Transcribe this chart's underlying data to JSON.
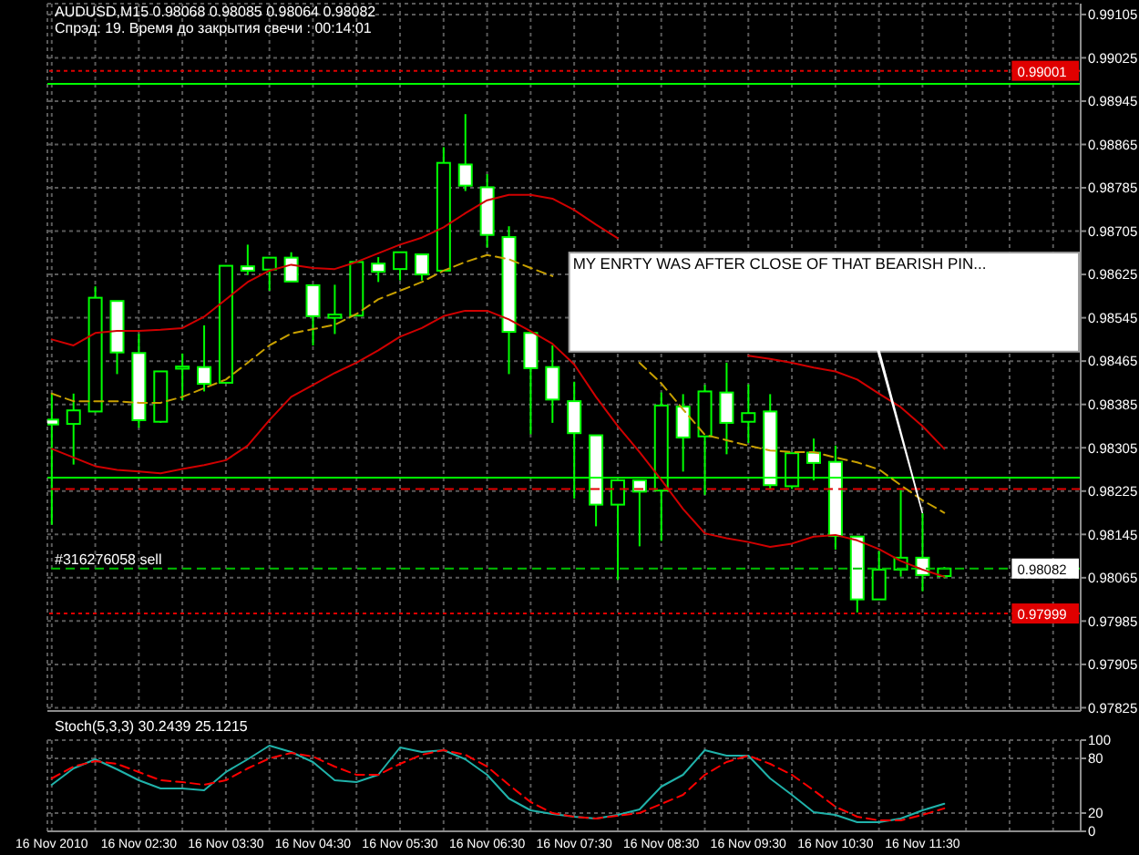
{
  "chart_data": [
    {
      "type": "candlestick",
      "title": "AUDUSD,M15 0.98068 0.98085 0.98064 0.98082",
      "subtitle": "Спрэд: 19. Время до закрытия свечи : 00:14:01",
      "x": [
        "2010-11-16T01:30",
        "2010-11-16T01:45",
        "2010-11-16T02:00",
        "2010-11-16T02:15",
        "2010-11-16T02:30",
        "2010-11-16T02:45",
        "2010-11-16T03:00",
        "2010-11-16T03:15",
        "2010-11-16T03:30",
        "2010-11-16T03:45",
        "2010-11-16T04:00",
        "2010-11-16T04:15",
        "2010-11-16T04:30",
        "2010-11-16T04:45",
        "2010-11-16T05:00",
        "2010-11-16T05:15",
        "2010-11-16T05:30",
        "2010-11-16T05:45",
        "2010-11-16T06:00",
        "2010-11-16T06:15",
        "2010-11-16T06:30",
        "2010-11-16T06:45",
        "2010-11-16T07:00",
        "2010-11-16T07:15",
        "2010-11-16T07:30",
        "2010-11-16T07:45",
        "2010-11-16T08:00",
        "2010-11-16T08:15",
        "2010-11-16T08:30",
        "2010-11-16T08:45",
        "2010-11-16T09:00",
        "2010-11-16T09:15",
        "2010-11-16T09:30",
        "2010-11-16T09:45",
        "2010-11-16T10:00",
        "2010-11-16T10:15",
        "2010-11-16T10:30",
        "2010-11-16T10:45",
        "2010-11-16T11:00",
        "2010-11-16T11:15",
        "2010-11-16T11:30",
        "2010-11-16T11:45"
      ],
      "ohlc": [
        [
          0.98357,
          0.98405,
          0.98163,
          0.98348
        ],
        [
          0.98349,
          0.98405,
          0.98274,
          0.98374
        ],
        [
          0.98372,
          0.98603,
          0.98371,
          0.98582
        ],
        [
          0.98576,
          0.98576,
          0.98441,
          0.98481
        ],
        [
          0.9848,
          0.98515,
          0.98342,
          0.98356
        ],
        [
          0.98353,
          0.98446,
          0.98351,
          0.98446
        ],
        [
          0.98451,
          0.98479,
          0.98393,
          0.98455
        ],
        [
          0.98454,
          0.98531,
          0.98409,
          0.98423
        ],
        [
          0.98425,
          0.98641,
          0.98424,
          0.98641
        ],
        [
          0.9864,
          0.9868,
          0.98624,
          0.98632
        ],
        [
          0.98634,
          0.98656,
          0.98595,
          0.98656
        ],
        [
          0.98656,
          0.98666,
          0.98612,
          0.98612
        ],
        [
          0.98605,
          0.98605,
          0.98494,
          0.98548
        ],
        [
          0.98545,
          0.98606,
          0.98515,
          0.98551
        ],
        [
          0.98549,
          0.98648,
          0.98549,
          0.98648
        ],
        [
          0.98645,
          0.98657,
          0.98611,
          0.9863
        ],
        [
          0.98635,
          0.98666,
          0.98614,
          0.98666
        ],
        [
          0.98662,
          0.98662,
          0.98614,
          0.98625
        ],
        [
          0.98632,
          0.9886,
          0.98632,
          0.98831
        ],
        [
          0.98828,
          0.98921,
          0.98779,
          0.98789
        ],
        [
          0.98786,
          0.9881,
          0.98675,
          0.98698
        ],
        [
          0.98694,
          0.98714,
          0.98441,
          0.98519
        ],
        [
          0.98517,
          0.98517,
          0.9833,
          0.98452
        ],
        [
          0.98454,
          0.98494,
          0.98351,
          0.98394
        ],
        [
          0.98391,
          0.98427,
          0.98211,
          0.98332
        ],
        [
          0.98328,
          0.98328,
          0.9816,
          0.982
        ],
        [
          0.982,
          0.98245,
          0.98061,
          0.98245
        ],
        [
          0.98245,
          0.98245,
          0.98123,
          0.98224
        ],
        [
          0.98226,
          0.98407,
          0.98133,
          0.98383
        ],
        [
          0.98381,
          0.98404,
          0.98261,
          0.98324
        ],
        [
          0.98326,
          0.98421,
          0.98218,
          0.98409
        ],
        [
          0.98407,
          0.98462,
          0.98293,
          0.98351
        ],
        [
          0.98353,
          0.98422,
          0.98314,
          0.98369
        ],
        [
          0.98372,
          0.98404,
          0.98229,
          0.98236
        ],
        [
          0.98234,
          0.98295,
          0.98229,
          0.98295
        ],
        [
          0.98296,
          0.98322,
          0.98245,
          0.98277
        ],
        [
          0.98279,
          0.98309,
          0.98117,
          0.98142
        ],
        [
          0.98141,
          0.98141,
          0.98001,
          0.98025
        ],
        [
          0.98025,
          0.98114,
          0.98025,
          0.9808
        ],
        [
          0.9808,
          0.98227,
          0.98067,
          0.98102
        ],
        [
          0.98102,
          0.98184,
          0.9804,
          0.9807
        ],
        [
          0.98068,
          0.98085,
          0.98064,
          0.98082
        ]
      ],
      "color": "#00ff00",
      "series": [
        {
          "type": "line",
          "color": "#d00000",
          "values": [
            0.98505,
            0.98494,
            0.98517,
            0.98521,
            0.98521,
            0.98523,
            0.98526,
            0.98547,
            0.98579,
            0.98611,
            0.98632,
            0.98643,
            0.98637,
            0.98635,
            0.98648,
            0.98664,
            0.9868,
            0.98693,
            0.98712,
            0.98738,
            0.98762,
            0.98772,
            0.98772,
            0.98765,
            0.98744,
            0.98717,
            0.98692,
            null,
            null,
            null,
            null,
            null,
            0.98475,
            0.98469,
            0.98462,
            0.98453,
            0.98446,
            0.98431,
            0.98405,
            0.9838,
            0.98345,
            0.98303
          ]
        },
        {
          "type": "line",
          "color": "#c8a000",
          "line_style": "dashed",
          "values": [
            0.98405,
            0.98391,
            0.98391,
            0.98391,
            0.98388,
            0.98388,
            0.98399,
            0.98415,
            0.98431,
            0.98462,
            0.98494,
            0.98516,
            0.98524,
            0.98532,
            0.98552,
            0.98579,
            0.98595,
            0.98611,
            0.98632,
            0.98648,
            0.98661,
            0.98653,
            0.98637,
            0.98622,
            null,
            null,
            null,
            0.98462,
            0.98424,
            0.98376,
            0.98329,
            0.98319,
            0.98309,
            0.983,
            0.98297,
            0.98297,
            0.98287,
            0.98278,
            0.98265,
            0.98236,
            0.98208,
            0.98185
          ]
        },
        {
          "type": "line",
          "color": "#d00000",
          "values": [
            0.98303,
            0.98287,
            0.98271,
            0.98264,
            0.98261,
            0.98258,
            0.98266,
            0.98273,
            0.98282,
            0.98309,
            0.98356,
            0.98399,
            0.98421,
            0.98443,
            0.98462,
            0.98485,
            0.9851,
            0.98526,
            0.98548,
            0.98558,
            0.98558,
            0.98542,
            0.9852,
            0.98497,
            0.98459,
            0.98399,
            0.98345,
            0.98297,
            0.98246,
            0.98192,
            0.98147,
            0.98138,
            0.98131,
            0.98122,
            0.98128,
            0.98141,
            0.98144,
            0.98134,
            0.98118,
            0.98096,
            0.9808,
            0.98067
          ]
        }
      ],
      "xlim": [
        "2010-11-16T01:27",
        "2010-11-16T13:19"
      ],
      "xticks": [
        {
          "value": "2010-11-16T01:30",
          "label": null
        },
        {
          "value": "2010-11-16T02:00",
          "label": null
        },
        {
          "value": "2010-11-16T02:30",
          "label": null
        },
        {
          "value": "2010-11-16T03:00",
          "label": null
        },
        {
          "value": "2010-11-16T03:30",
          "label": null
        },
        {
          "value": "2010-11-16T04:00",
          "label": null
        },
        {
          "value": "2010-11-16T04:30",
          "label": null
        },
        {
          "value": "2010-11-16T05:00",
          "label": null
        },
        {
          "value": "2010-11-16T05:30",
          "label": null
        },
        {
          "value": "2010-11-16T06:00",
          "label": null
        },
        {
          "value": "2010-11-16T06:30",
          "label": null
        },
        {
          "value": "2010-11-16T07:00",
          "label": null
        },
        {
          "value": "2010-11-16T07:30",
          "label": null
        },
        {
          "value": "2010-11-16T08:00",
          "label": null
        },
        {
          "value": "2010-11-16T08:30",
          "label": null
        },
        {
          "value": "2010-11-16T09:00",
          "label": null
        },
        {
          "value": "2010-11-16T09:30",
          "label": null
        },
        {
          "value": "2010-11-16T10:00",
          "label": null
        },
        {
          "value": "2010-11-16T10:30",
          "label": null
        },
        {
          "value": "2010-11-16T11:00",
          "label": null
        },
        {
          "value": "2010-11-16T11:30",
          "label": null
        },
        {
          "value": "2010-11-16T12:00",
          "label": null
        },
        {
          "value": "2010-11-16T12:30",
          "label": null
        },
        {
          "value": "2010-11-16T13:00",
          "label": null
        }
      ],
      "ylim": [
        0.97819,
        0.99125
      ],
      "yticks": [
        0.97825,
        0.97905,
        0.97985,
        0.98065,
        0.98145,
        0.98225,
        0.98305,
        0.98385,
        0.98465,
        0.98545,
        0.98625,
        0.98705,
        0.98785,
        0.98865,
        0.98945,
        0.99025,
        0.99105
      ],
      "tick_labels": "y",
      "grid": true,
      "ref_lines": [
        {
          "axis": "y",
          "value": 0.99001,
          "label": "0.99001",
          "color": "#e00000",
          "line_style": "dotted"
        },
        {
          "axis": "y",
          "value": 0.98977,
          "color": "#00ff00"
        },
        {
          "axis": "y",
          "value": 0.9825,
          "color": "#00ff00"
        },
        {
          "axis": "y",
          "value": 0.98229,
          "color": "#e00000",
          "line_style": "dashed"
        },
        {
          "axis": "y",
          "value": 0.98082,
          "label": "#316276058 sell",
          "color": "#00c000",
          "line_style": "dashed"
        },
        {
          "axis": "y",
          "value": 0.97999,
          "label": "0.97999",
          "color": "#e00000",
          "line_style": "dotted"
        }
      ],
      "annotations": [
        {
          "text": "MY ENRTY WAS AFTER CLOSE OF THAT BEARISH PIN...",
          "x": "2010-11-16T11:30",
          "y": 0.98184
        },
        {
          "text": "0.98082",
          "y": 0.98082
        }
      ]
    },
    {
      "type": "line",
      "title": "Stoch(5,3,3) 30.2439 25.1215",
      "x": [
        "2010-11-16T01:30",
        "2010-11-16T01:45",
        "2010-11-16T02:00",
        "2010-11-16T02:15",
        "2010-11-16T02:30",
        "2010-11-16T02:45",
        "2010-11-16T03:00",
        "2010-11-16T03:15",
        "2010-11-16T03:30",
        "2010-11-16T03:45",
        "2010-11-16T04:00",
        "2010-11-16T04:15",
        "2010-11-16T04:30",
        "2010-11-16T04:45",
        "2010-11-16T05:00",
        "2010-11-16T05:15",
        "2010-11-16T05:30",
        "2010-11-16T05:45",
        "2010-11-16T06:00",
        "2010-11-16T06:15",
        "2010-11-16T06:30",
        "2010-11-16T06:45",
        "2010-11-16T07:00",
        "2010-11-16T07:15",
        "2010-11-16T07:30",
        "2010-11-16T07:45",
        "2010-11-16T08:00",
        "2010-11-16T08:15",
        "2010-11-16T08:30",
        "2010-11-16T08:45",
        "2010-11-16T09:00",
        "2010-11-16T09:15",
        "2010-11-16T09:30",
        "2010-11-16T09:45",
        "2010-11-16T10:00",
        "2010-11-16T10:15",
        "2010-11-16T10:30",
        "2010-11-16T10:45",
        "2010-11-16T11:00",
        "2010-11-16T11:15",
        "2010-11-16T11:30",
        "2010-11-16T11:45"
      ],
      "series": [
        {
          "color": "#20b2aa",
          "values": [
            51,
            69,
            79,
            68,
            56,
            47,
            47,
            45,
            65,
            79,
            94,
            87,
            76,
            56,
            54,
            62,
            92,
            87,
            89,
            79,
            62,
            36,
            23,
            19,
            16,
            14,
            18,
            24,
            49,
            62,
            89,
            83,
            83,
            58,
            40,
            21,
            18,
            10,
            10,
            14,
            23,
            30.2439
          ]
        },
        {
          "color": "#ff0000",
          "line_style": "dashed",
          "values": [
            58,
            71,
            77,
            74,
            65,
            56,
            54,
            51,
            56,
            69,
            80,
            86,
            82,
            71,
            62,
            62,
            74,
            84,
            89,
            84,
            71,
            51,
            32,
            20,
            16,
            14,
            17,
            20,
            30,
            40,
            62,
            76,
            83,
            74,
            62,
            45,
            27,
            16,
            12,
            12,
            18,
            25.1215
          ]
        }
      ],
      "xlim": [
        "2010-11-16T01:27",
        "2010-11-16T13:19"
      ],
      "xticks": [
        {
          "value": "2010-11-16T01:30",
          "label": "16 Nov 2010"
        },
        {
          "value": "2010-11-16T02:00",
          "label": null
        },
        {
          "value": "2010-11-16T02:30",
          "label": "16 Nov 02:30"
        },
        {
          "value": "2010-11-16T03:00",
          "label": null
        },
        {
          "value": "2010-11-16T03:30",
          "label": "16 Nov 03:30"
        },
        {
          "value": "2010-11-16T04:00",
          "label": null
        },
        {
          "value": "2010-11-16T04:30",
          "label": "16 Nov 04:30"
        },
        {
          "value": "2010-11-16T05:00",
          "label": null
        },
        {
          "value": "2010-11-16T05:30",
          "label": "16 Nov 05:30"
        },
        {
          "value": "2010-11-16T06:00",
          "label": null
        },
        {
          "value": "2010-11-16T06:30",
          "label": "16 Nov 06:30"
        },
        {
          "value": "2010-11-16T07:00",
          "label": null
        },
        {
          "value": "2010-11-16T07:30",
          "label": "16 Nov 07:30"
        },
        {
          "value": "2010-11-16T08:00",
          "label": null
        },
        {
          "value": "2010-11-16T08:30",
          "label": "16 Nov 08:30"
        },
        {
          "value": "2010-11-16T09:00",
          "label": null
        },
        {
          "value": "2010-11-16T09:30",
          "label": "16 Nov 09:30"
        },
        {
          "value": "2010-11-16T10:00",
          "label": null
        },
        {
          "value": "2010-11-16T10:30",
          "label": "16 Nov 10:30"
        },
        {
          "value": "2010-11-16T11:00",
          "label": null
        },
        {
          "value": "2010-11-16T11:30",
          "label": "16 Nov 11:30"
        },
        {
          "value": "2010-11-16T12:00",
          "label": null
        },
        {
          "value": "2010-11-16T12:30",
          "label": null
        },
        {
          "value": "2010-11-16T13:00",
          "label": null
        }
      ],
      "ylim": [
        0,
        100
      ],
      "yticks": [
        0,
        20,
        80,
        100
      ],
      "grid": true
    }
  ]
}
